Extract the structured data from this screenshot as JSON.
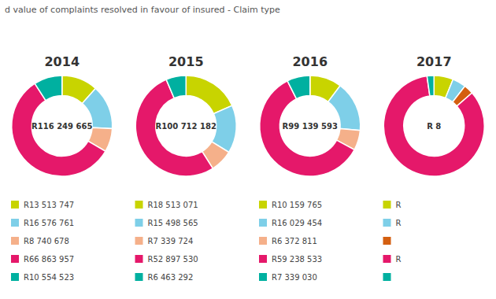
{
  "chart_data": [
    {
      "type": "pie",
      "title": "d value of complaints resolved in favour of insured - Claim type",
      "subtitle": "2014",
      "annotations": [
        "R116 249 665"
      ],
      "categories": [
        "R13 513 747",
        "R16 576 761",
        "R8 740 678",
        "R66 863 957",
        "R10 554 523"
      ],
      "values": [
        13513747,
        16576761,
        8740678,
        66863957,
        10554523
      ],
      "colors": [
        "#c8d400",
        "#7ecfe8",
        "#f5b08a",
        "#e5186a",
        "#00b0a0"
      ],
      "legend": "bottom"
    },
    {
      "type": "pie",
      "subtitle": "2015",
      "annotations": [
        "R100 712 182"
      ],
      "categories": [
        "R18 513 071",
        "R15 498 565",
        "R7 339 724",
        "R52 897 530",
        "R6 463 292"
      ],
      "values": [
        18513071,
        15498565,
        7339724,
        52897530,
        6463292
      ],
      "colors": [
        "#c8d400",
        "#7ecfe8",
        "#f5b08a",
        "#e5186a",
        "#00b0a0"
      ],
      "legend": "bottom"
    },
    {
      "type": "pie",
      "subtitle": "2016",
      "annotations": [
        "R99 139 593"
      ],
      "categories": [
        "R10 159 765",
        "R16 029 454",
        "R6 372 811",
        "R59 238 533",
        "R7 339 030"
      ],
      "values": [
        10159765,
        16029454,
        6372811,
        59238533,
        7339030
      ],
      "colors": [
        "#c8d400",
        "#7ecfe8",
        "#f5b08a",
        "#e5186a",
        "#00b0a0"
      ],
      "legend": "bottom"
    },
    {
      "type": "pie",
      "subtitle": "2017",
      "annotations": [
        "R 8"
      ],
      "categories": [
        "R",
        "R",
        null,
        "R",
        null
      ],
      "values": [
        5000000,
        3500000,
        2500000,
        68000000,
        1800000
      ],
      "colors": [
        "#c8d400",
        "#7ecfe8",
        "#d45f10",
        "#e5186a",
        "#00b0a0"
      ],
      "legend": "bottom"
    }
  ]
}
